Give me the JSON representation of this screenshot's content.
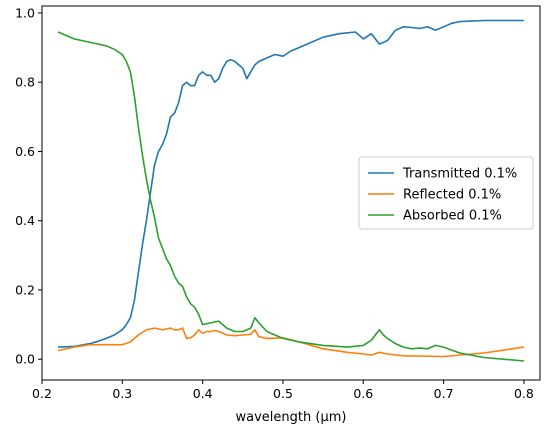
{
  "chart_data": {
    "type": "line",
    "xlabel": "wavelength (μm)",
    "ylabel": "",
    "xlim": [
      0.2,
      0.82
    ],
    "ylim": [
      -0.06,
      1.02
    ],
    "xticks": [
      0.2,
      0.3,
      0.4,
      0.5,
      0.6,
      0.7,
      0.8
    ],
    "xtick_labels": [
      "0.2",
      "0.3",
      "0.4",
      "0.5",
      "0.6",
      "0.7",
      "0.8"
    ],
    "yticks": [
      0.0,
      0.2,
      0.4,
      0.6,
      0.8,
      1.0
    ],
    "ytick_labels": [
      "0.0",
      "0.2",
      "0.4",
      "0.6",
      "0.8",
      "1.0"
    ],
    "grid": false,
    "legend_position": "center-right",
    "series": [
      {
        "name": "Transmitted 0.1%",
        "color": "#1f77b4",
        "x": [
          0.22,
          0.24,
          0.26,
          0.27,
          0.28,
          0.29,
          0.3,
          0.305,
          0.31,
          0.315,
          0.32,
          0.325,
          0.33,
          0.335,
          0.34,
          0.345,
          0.35,
          0.355,
          0.36,
          0.365,
          0.37,
          0.375,
          0.38,
          0.385,
          0.39,
          0.395,
          0.4,
          0.405,
          0.41,
          0.415,
          0.42,
          0.425,
          0.43,
          0.435,
          0.44,
          0.445,
          0.45,
          0.455,
          0.46,
          0.465,
          0.47,
          0.48,
          0.49,
          0.5,
          0.51,
          0.52,
          0.53,
          0.55,
          0.57,
          0.59,
          0.6,
          0.61,
          0.62,
          0.63,
          0.64,
          0.65,
          0.66,
          0.67,
          0.68,
          0.69,
          0.7,
          0.71,
          0.72,
          0.75,
          0.8
        ],
        "y": [
          0.035,
          0.037,
          0.045,
          0.052,
          0.06,
          0.07,
          0.085,
          0.1,
          0.12,
          0.17,
          0.25,
          0.33,
          0.4,
          0.48,
          0.56,
          0.6,
          0.62,
          0.65,
          0.7,
          0.71,
          0.74,
          0.79,
          0.8,
          0.79,
          0.79,
          0.82,
          0.83,
          0.82,
          0.82,
          0.8,
          0.81,
          0.84,
          0.86,
          0.865,
          0.86,
          0.85,
          0.84,
          0.81,
          0.83,
          0.85,
          0.86,
          0.87,
          0.88,
          0.875,
          0.89,
          0.9,
          0.91,
          0.93,
          0.94,
          0.945,
          0.925,
          0.94,
          0.91,
          0.92,
          0.95,
          0.96,
          0.958,
          0.955,
          0.96,
          0.95,
          0.96,
          0.97,
          0.975,
          0.978,
          0.978
        ]
      },
      {
        "name": "Reflected 0.1%",
        "color": "#ff7f0e",
        "x": [
          0.22,
          0.24,
          0.26,
          0.28,
          0.3,
          0.31,
          0.32,
          0.33,
          0.34,
          0.35,
          0.36,
          0.365,
          0.37,
          0.375,
          0.38,
          0.385,
          0.39,
          0.395,
          0.4,
          0.405,
          0.41,
          0.415,
          0.42,
          0.43,
          0.44,
          0.45,
          0.46,
          0.465,
          0.47,
          0.48,
          0.5,
          0.52,
          0.55,
          0.58,
          0.6,
          0.61,
          0.62,
          0.63,
          0.65,
          0.7,
          0.75,
          0.8
        ],
        "y": [
          0.025,
          0.035,
          0.042,
          0.042,
          0.042,
          0.05,
          0.07,
          0.085,
          0.09,
          0.085,
          0.09,
          0.085,
          0.085,
          0.09,
          0.06,
          0.062,
          0.07,
          0.085,
          0.075,
          0.08,
          0.08,
          0.083,
          0.08,
          0.07,
          0.068,
          0.07,
          0.072,
          0.085,
          0.065,
          0.06,
          0.062,
          0.05,
          0.03,
          0.02,
          0.015,
          0.012,
          0.02,
          0.015,
          0.01,
          0.008,
          0.018,
          0.035
        ]
      },
      {
        "name": "Absorbed 0.1%",
        "color": "#2ca02c",
        "x": [
          0.22,
          0.24,
          0.26,
          0.28,
          0.29,
          0.3,
          0.305,
          0.31,
          0.315,
          0.32,
          0.325,
          0.33,
          0.335,
          0.34,
          0.345,
          0.35,
          0.355,
          0.36,
          0.365,
          0.37,
          0.375,
          0.38,
          0.385,
          0.39,
          0.395,
          0.4,
          0.41,
          0.42,
          0.43,
          0.44,
          0.45,
          0.46,
          0.465,
          0.47,
          0.48,
          0.49,
          0.5,
          0.52,
          0.55,
          0.58,
          0.6,
          0.61,
          0.62,
          0.625,
          0.63,
          0.64,
          0.65,
          0.66,
          0.67,
          0.68,
          0.69,
          0.7,
          0.72,
          0.75,
          0.8
        ],
        "y": [
          0.945,
          0.925,
          0.915,
          0.905,
          0.895,
          0.88,
          0.86,
          0.83,
          0.76,
          0.67,
          0.59,
          0.52,
          0.46,
          0.41,
          0.35,
          0.32,
          0.29,
          0.27,
          0.24,
          0.22,
          0.21,
          0.18,
          0.16,
          0.15,
          0.13,
          0.1,
          0.105,
          0.11,
          0.09,
          0.08,
          0.08,
          0.09,
          0.12,
          0.105,
          0.08,
          0.07,
          0.06,
          0.05,
          0.04,
          0.035,
          0.04,
          0.055,
          0.085,
          0.07,
          0.06,
          0.045,
          0.035,
          0.03,
          0.032,
          0.03,
          0.04,
          0.035,
          0.018,
          0.005,
          -0.005
        ]
      }
    ]
  }
}
